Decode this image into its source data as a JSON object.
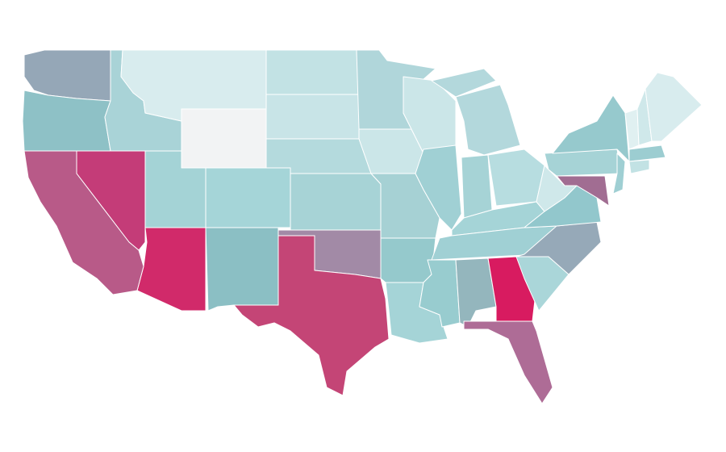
{
  "map": {
    "regions": [
      {
        "color": "#95a7b7"
      },
      {
        "color": "#8ec1c6"
      },
      {
        "color": "#a9d3d7"
      },
      {
        "color": "#d8ecee"
      },
      {
        "color": "#f2f3f4"
      },
      {
        "color": "#c2e2e4"
      },
      {
        "color": "#c8e4e7"
      },
      {
        "color": "#b4dadd"
      },
      {
        "color": "#a7d3d6"
      },
      {
        "color": "#a28aa6"
      },
      {
        "color": "#c44576"
      },
      {
        "color": "#8bbfc4"
      },
      {
        "color": "#a5d5d8"
      },
      {
        "color": "#a4d3d6"
      },
      {
        "color": "#d12a6a"
      },
      {
        "color": "#c43c78"
      },
      {
        "color": "#b85a88"
      },
      {
        "color": "#b0d6da"
      },
      {
        "color": "#cbe6e8"
      },
      {
        "color": "#a6d1d4"
      },
      {
        "color": "#95c9cc"
      },
      {
        "color": "#a5d4d7"
      },
      {
        "color": "#cbe6e8"
      },
      {
        "color": "#a0d0d4"
      },
      {
        "color": "#b3d8dc"
      },
      {
        "color": "#a6d3d6"
      },
      {
        "color": "#b7dde0"
      },
      {
        "color": "#a5d4d7"
      },
      {
        "color": "#a0d0d4"
      },
      {
        "color": "#98cccf"
      },
      {
        "color": "#94b6bd"
      },
      {
        "color": "#d81b60"
      },
      {
        "color": "#ae6c96"
      },
      {
        "color": "#aad6d9"
      },
      {
        "color": "#96a9b8"
      },
      {
        "color": "#92c7cc"
      },
      {
        "color": "#cfe8ea"
      },
      {
        "color": "#a6d3d6"
      },
      {
        "color": "#96c9cd"
      },
      {
        "color": "#a16d92"
      },
      {
        "color": "#9fcfd3"
      },
      {
        "color": "#9ccdd1"
      },
      {
        "color": "#c2e2e4"
      },
      {
        "color": "#e0f0f1"
      },
      {
        "color": "#cfe8ea"
      },
      {
        "color": "#d8ecee"
      }
    ]
  }
}
